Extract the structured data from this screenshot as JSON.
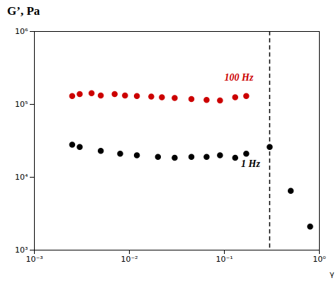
{
  "chart_data": {
    "type": "scatter",
    "title": "G’, Pa",
    "xlabel": "γ",
    "log": true,
    "xlim": [
      0.001,
      1.0
    ],
    "ylim": [
      1000,
      1000000
    ],
    "xticks": [
      {
        "value": 0.001,
        "label": "10⁻³"
      },
      {
        "value": 0.01,
        "label": "10⁻²"
      },
      {
        "value": 0.1,
        "label": "10⁻¹"
      },
      {
        "value": 1,
        "label": "10⁰"
      }
    ],
    "yticks": [
      {
        "value": 1000,
        "label": "10³"
      },
      {
        "value": 10000,
        "label": "10⁴"
      },
      {
        "value": 100000,
        "label": "10⁵"
      },
      {
        "value": 1000000,
        "label": "10⁶"
      }
    ],
    "grid": false,
    "series": [
      {
        "name": "100 Hz",
        "color": "#cc0000",
        "marker": "circle",
        "x": [
          0.0025,
          0.003,
          0.004,
          0.005,
          0.007,
          0.009,
          0.012,
          0.017,
          0.022,
          0.03,
          0.045,
          0.065,
          0.09,
          0.13,
          0.17
        ],
        "values": [
          130000,
          138000,
          142000,
          132000,
          138000,
          132000,
          130000,
          128000,
          125000,
          122000,
          118000,
          115000,
          113000,
          125000,
          130000
        ]
      },
      {
        "name": "1 Hz",
        "color": "#000000",
        "marker": "circle",
        "x": [
          0.0025,
          0.003,
          0.005,
          0.008,
          0.012,
          0.02,
          0.03,
          0.045,
          0.065,
          0.09,
          0.13,
          0.17,
          0.3,
          0.5,
          0.8
        ],
        "values": [
          28000,
          26000,
          23000,
          21000,
          20000,
          19000,
          18500,
          19000,
          19000,
          20000,
          18500,
          21000,
          26000,
          6500,
          2100
        ]
      }
    ],
    "reference_lines": [
      {
        "axis": "x",
        "value": 0.3,
        "color": "#000000",
        "line_style": "dashed"
      }
    ],
    "annotations": [
      {
        "text": "100 Hz",
        "x": 0.1,
        "y": 210000,
        "color": "#cc0000"
      },
      {
        "text": "1 Hz",
        "x": 0.15,
        "y": 13800,
        "color": "#000000"
      }
    ]
  }
}
